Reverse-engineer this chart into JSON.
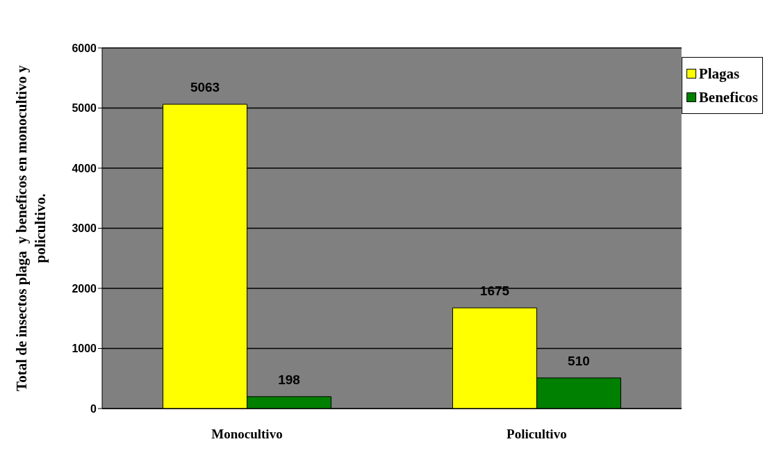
{
  "chart_data": {
    "type": "bar",
    "ylabel": "Total de insectos plaga  y beneficos en monocultivo y policultivo.",
    "categories": [
      "Monocultivo",
      "Policultivo"
    ],
    "series": [
      {
        "name": "Plagas",
        "color": "#ffff00",
        "values": [
          5063,
          1675
        ]
      },
      {
        "name": "Beneficos",
        "color": "#008000",
        "values": [
          198,
          510
        ]
      }
    ],
    "ylim": [
      0,
      6000
    ],
    "yticks": [
      0,
      1000,
      2000,
      3000,
      4000,
      5000,
      6000
    ],
    "grid": "y",
    "legend": "top right",
    "data_labels": true
  }
}
